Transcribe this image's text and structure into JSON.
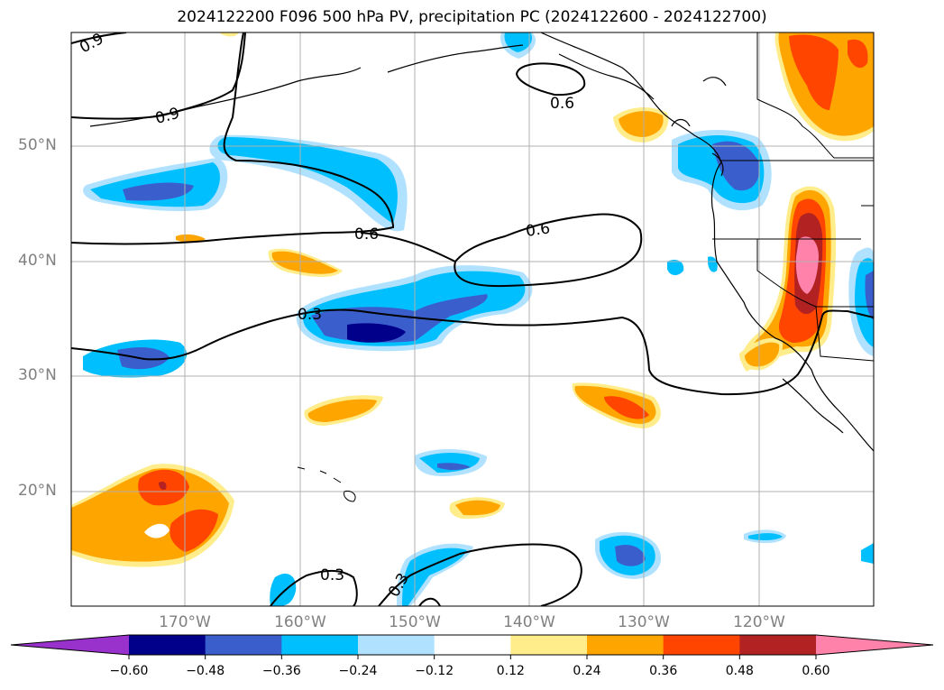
{
  "title": "2024122200 F096 500 hPa PV, precipitation PC (2024122600 - 2024122700)",
  "latitude_labels": [
    "50°N",
    "40°N",
    "30°N",
    "20°N"
  ],
  "longitude_labels": [
    "170°W",
    "160°W",
    "150°W",
    "140°W",
    "130°W",
    "120°W"
  ],
  "pv_contour_labels": [
    "0.9",
    "0.9",
    "0.6",
    "0.6",
    "0.6",
    "0.3",
    "0.3",
    "0.3"
  ],
  "colorbar": {
    "ticks": [
      "−0.60",
      "−0.48",
      "−0.36",
      "−0.24",
      "−0.12",
      "0.12",
      "0.24",
      "0.36",
      "0.48",
      "0.60"
    ],
    "colors": [
      "#9932cc",
      "#00008b",
      "#3a5fcd",
      "#00bfff",
      "#b0e2ff",
      "#ffffff",
      "#ffec8b",
      "#ffa500",
      "#ff4500",
      "#b22222",
      "#ff82ab"
    ]
  }
}
